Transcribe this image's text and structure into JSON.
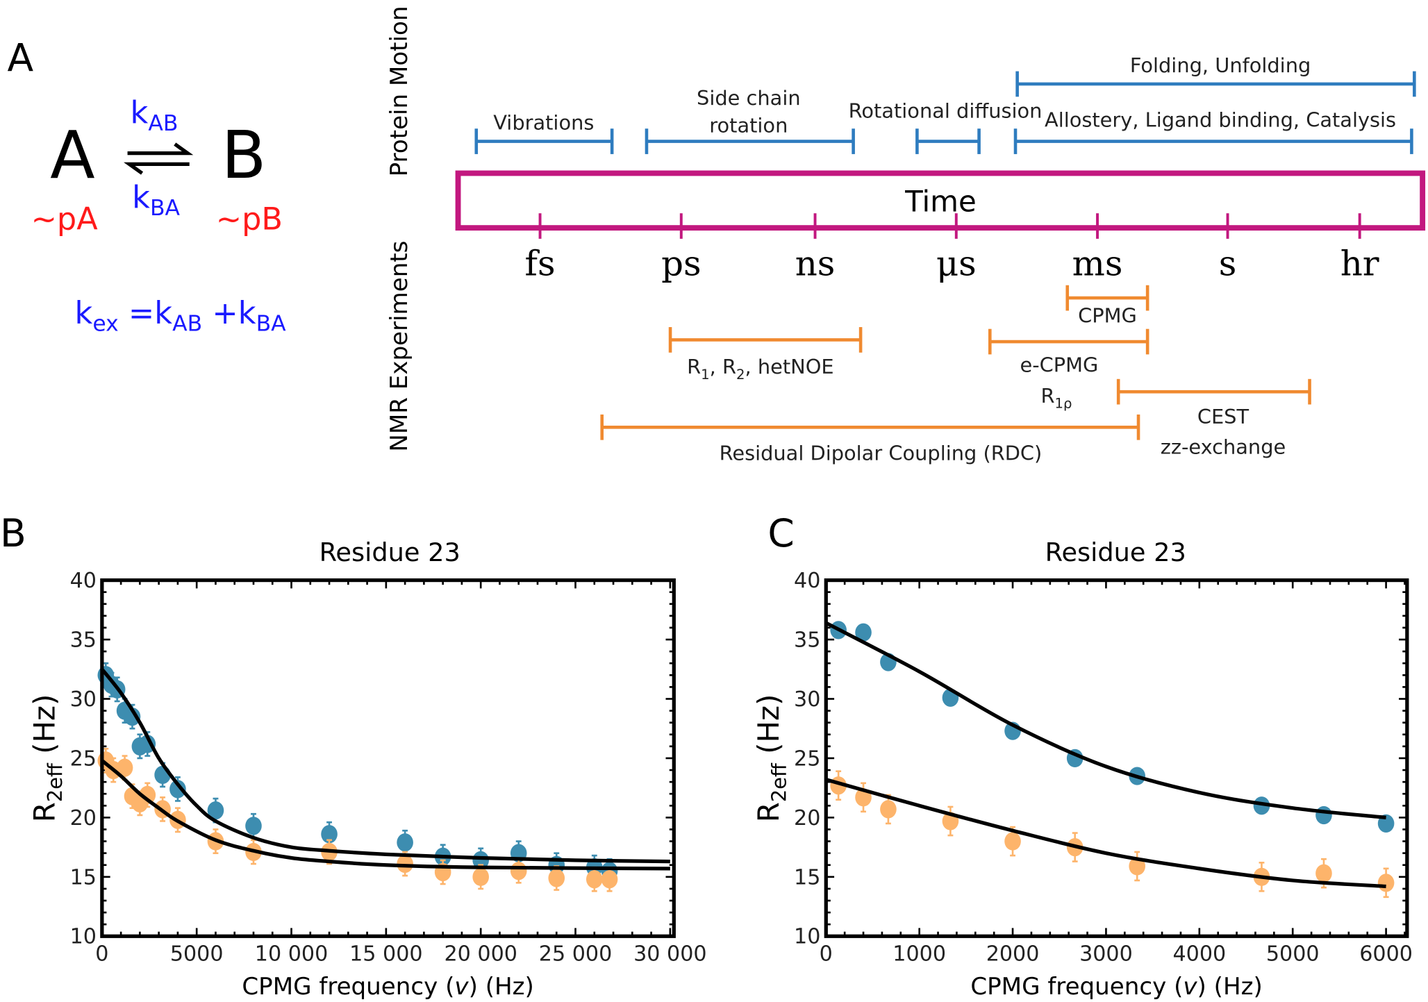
{
  "colors": {
    "blue_text": "#1a1aff",
    "red_text": "#ff1a1a",
    "motion_bracket": "#2e7cbf",
    "nmr_bracket": "#f08a30",
    "time_box": "#c2187f",
    "series_blue": "#3d8db0",
    "series_orange": "#fdb46b"
  },
  "panel_a": {
    "panel_label": "A",
    "state_a": "A",
    "state_b": "B",
    "k_ab": {
      "k": "k",
      "sub": "AB"
    },
    "k_ba": {
      "k": "k",
      "sub": "BA"
    },
    "pop_a": "~pA",
    "pop_b": "~pB",
    "kex": {
      "k": "k",
      "sub": "ex",
      "eq": " =k",
      "ab": "AB",
      "plus": " +k",
      "ba": "BA"
    }
  },
  "timescale": {
    "motion_heading": "Protein Motion",
    "nmr_heading": "NMR Experiments",
    "time_label": "Time",
    "units": [
      "fs",
      "ps",
      "ns",
      "μs",
      "ms",
      "s",
      "hr"
    ],
    "motions": [
      {
        "label": [
          "Vibrations"
        ]
      },
      {
        "label": [
          "Side chain",
          "rotation"
        ]
      },
      {
        "label": [
          "Rotational diffusion"
        ]
      },
      {
        "label": [
          "Allostery, Ligand binding, Catalysis"
        ]
      },
      {
        "label": [
          "Folding, Unfolding"
        ]
      }
    ],
    "experiments": {
      "cpmg": "CPMG",
      "relax": {
        "r": "R",
        "s1": "1",
        "c1": ", R",
        "s2": "2",
        "rest": ", hetNOE"
      },
      "ecpmg": "e-CPMG",
      "r1rho": {
        "r": "R",
        "sub": "1ρ"
      },
      "cest": "CEST",
      "zz": "zz-exchange",
      "rdc": "Residual Dipolar Coupling (RDC)"
    }
  },
  "chart_data": [
    {
      "panel_label": "B",
      "type": "scatter",
      "title": "Residue 23",
      "xlabel": {
        "pre": "CPMG frequency (",
        "var": "v",
        "post": ") (Hz)"
      },
      "ylabel": {
        "r": "R",
        "sub": "2eff",
        "unit": " (Hz)"
      },
      "xlim": [
        0,
        30200
      ],
      "ylim": [
        10,
        40
      ],
      "xticks": [
        0,
        5000,
        10000,
        15000,
        20000,
        25000,
        30000
      ],
      "xtick_labels": [
        "0",
        "5000",
        "10 000",
        "15 000",
        "20 000",
        "25 000",
        "30 000"
      ],
      "yticks": [
        10,
        15,
        20,
        25,
        30,
        35,
        40
      ],
      "ytick_labels": [
        "10",
        "15",
        "20",
        "25",
        "30",
        "35",
        "40"
      ],
      "grid": false,
      "series": [
        {
          "color": "#3d8db0",
          "x": [
            200,
            500,
            800,
            1200,
            1600,
            2000,
            2400,
            3200,
            4000,
            6000,
            8000,
            12000,
            16000,
            18000,
            20000,
            22000,
            24000,
            26000,
            26800
          ],
          "y": [
            32,
            31.2,
            30.8,
            29,
            28.5,
            26,
            26.2,
            23.6,
            22.4,
            20.6,
            19.3,
            18.6,
            17.9,
            16.7,
            16.4,
            17,
            16,
            15.8,
            15.5
          ],
          "err": 1,
          "fit": {
            "x": [
              0,
              1000,
              2000,
              3000,
              4000,
              5000,
              6000,
              8000,
              10000,
              12000,
              15000,
              20000,
              25000,
              30000
            ],
            "y": [
              32.5,
              30.5,
              28,
              25,
              22.8,
              21,
              19.7,
              18.3,
              17.5,
              17.2,
              16.9,
              16.6,
              16.4,
              16.3
            ]
          }
        },
        {
          "color": "#fdb46b",
          "x": [
            200,
            600,
            1200,
            1600,
            2000,
            2400,
            3200,
            4000,
            6000,
            8000,
            12000,
            16000,
            18000,
            20000,
            22000,
            24000,
            26000,
            26800
          ],
          "y": [
            24.8,
            24,
            24.2,
            21.8,
            21.2,
            21.9,
            20.7,
            19.8,
            18.0,
            17.1,
            17.1,
            16.1,
            15.4,
            15,
            15.5,
            14.9,
            14.8,
            14.8
          ],
          "err": 1,
          "fit": {
            "x": [
              0,
              1000,
              2000,
              3000,
              4000,
              6000,
              8000,
              10000,
              12000,
              15000,
              20000,
              30000
            ],
            "y": [
              24.8,
              23.5,
              22,
              20.8,
              19.7,
              18.1,
              17.2,
              16.6,
              16.3,
              16.0,
              15.8,
              15.7
            ]
          }
        }
      ]
    },
    {
      "panel_label": "C",
      "type": "scatter",
      "title": "Residue 23",
      "xlabel": {
        "pre": "CPMG frequency (",
        "var": "v",
        "post": ") (Hz)"
      },
      "ylabel": {
        "r": "R",
        "sub": "2eff",
        "unit": " (Hz)"
      },
      "xlim": [
        0,
        6225
      ],
      "ylim": [
        10,
        40
      ],
      "xticks": [
        0,
        1000,
        2000,
        3000,
        4000,
        5000,
        6000
      ],
      "xtick_labels": [
        "0",
        "1000",
        "2000",
        "3000",
        "4000",
        "5000",
        "6000"
      ],
      "yticks": [
        10,
        15,
        20,
        25,
        30,
        35,
        40
      ],
      "ytick_labels": [
        "10",
        "15",
        "20",
        "25",
        "30",
        "35",
        "40"
      ],
      "grid": false,
      "series": [
        {
          "color": "#3d8db0",
          "x": [
            133,
            400,
            667,
            1333,
            2000,
            2667,
            3333,
            4667,
            5333,
            6000
          ],
          "y": [
            35.8,
            35.6,
            33.1,
            30.1,
            27.3,
            25.0,
            23.5,
            21.0,
            20.2,
            19.5
          ],
          "err": 0.3,
          "fit": {
            "x": [
              0,
              1000,
              2000,
              3000,
              4000,
              5000,
              6000
            ],
            "y": [
              36.4,
              32.3,
              27.8,
              24.3,
              22.1,
              20.8,
              20.0
            ]
          }
        },
        {
          "color": "#fdb46b",
          "x": [
            133,
            400,
            667,
            1333,
            2000,
            2667,
            3333,
            4667,
            5333,
            6000
          ],
          "y": [
            22.7,
            21.7,
            20.7,
            19.7,
            18.0,
            17.5,
            15.9,
            15.0,
            15.3,
            14.5
          ],
          "err": 1.2,
          "fit": {
            "x": [
              0,
              1000,
              2000,
              3000,
              4000,
              5000,
              6000
            ],
            "y": [
              23.2,
              21.0,
              18.9,
              17.0,
              15.7,
              14.7,
              14.2
            ]
          }
        }
      ]
    }
  ]
}
